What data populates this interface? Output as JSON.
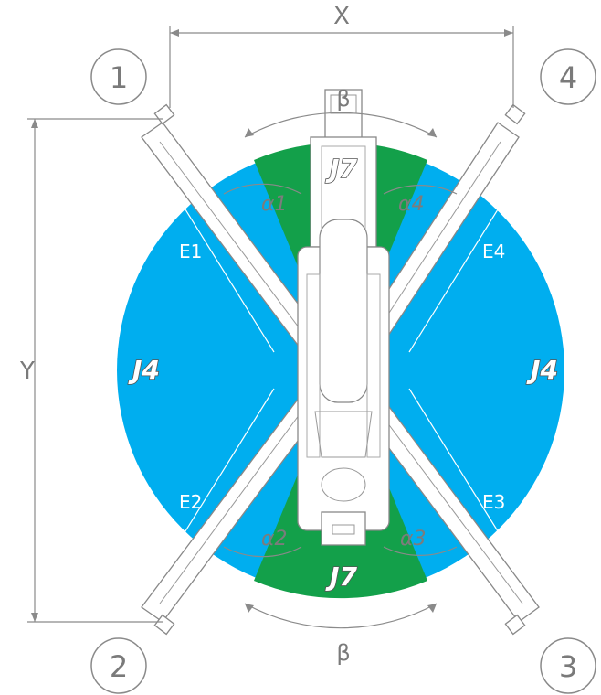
{
  "diagram": {
    "dimension_x": "X",
    "dimension_y": "Y",
    "corners": [
      "1",
      "2",
      "3",
      "4"
    ],
    "zones": {
      "large_zone": "J4",
      "small_zone": "J7"
    },
    "extensions": [
      "E1",
      "E2",
      "E3",
      "E4"
    ],
    "angles": {
      "beta": "β",
      "alpha1": "α1",
      "alpha2": "α2",
      "alpha3": "α3",
      "alpha4": "α4"
    },
    "colors": {
      "zone_j4": "#00aeef",
      "zone_j7": "#13a04a",
      "outline": "#8a8a8a"
    }
  }
}
